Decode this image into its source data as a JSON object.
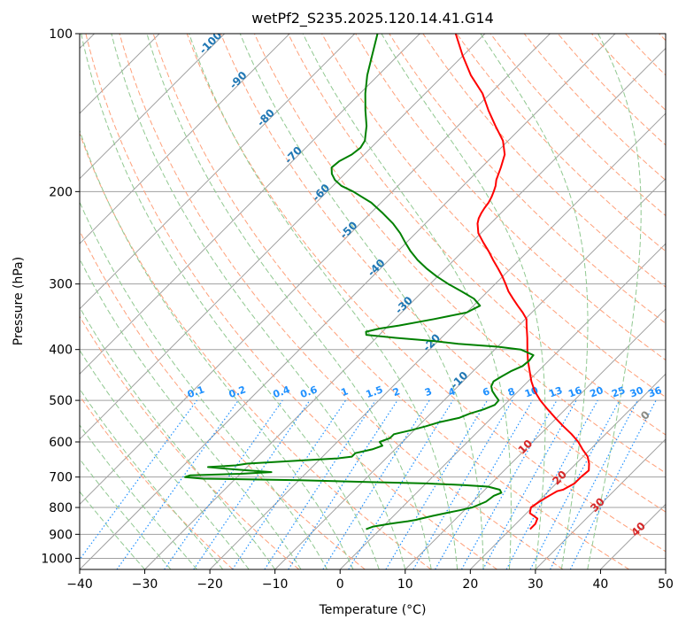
{
  "chart_data": {
    "type": "line",
    "title": "wetPf2_S235.2025.120.14.41.G14",
    "xlabel": "Temperature (°C)",
    "ylabel": "Pressure (hPa)",
    "xlim": [
      -40,
      50
    ],
    "ylim": [
      1050,
      100
    ],
    "y_scale": "log",
    "skew_deg_per_decade_ln": true,
    "x_ticks": [
      "−40",
      "−30",
      "−20",
      "−10",
      "0",
      "10",
      "20",
      "30",
      "40",
      "50"
    ],
    "x_tick_values": [
      -40,
      -30,
      -20,
      -10,
      0,
      10,
      20,
      30,
      40,
      50
    ],
    "y_ticks": [
      "100",
      "200",
      "300",
      "400",
      "500",
      "600",
      "700",
      "800",
      "900",
      "1000"
    ],
    "y_tick_values": [
      100,
      200,
      300,
      400,
      500,
      600,
      700,
      800,
      900,
      1000
    ],
    "grid": true,
    "colors": {
      "temperature": "#ff0000",
      "dewpoint": "#008000",
      "isotherm": "#a0a0a0",
      "dry_adiabat": "#ffa07a",
      "moist_adiabat": "#90c890",
      "mixing_ratio": "#1e90ff",
      "isotherm_label": "#1f77b4",
      "dry_label": "#d62728",
      "moist_label": "#cc9966"
    },
    "series": [
      {
        "key": "temperature",
        "pressure": [
          880,
          860,
          840,
          830,
          820,
          800,
          780,
          760,
          745,
          740,
          720,
          700,
          680,
          660,
          640,
          620,
          600,
          580,
          560,
          540,
          520,
          500,
          480,
          460,
          440,
          420,
          400,
          380,
          360,
          350,
          340,
          330,
          320,
          310,
          300,
          290,
          280,
          270,
          260,
          250,
          240,
          230,
          225,
          220,
          215,
          210,
          205,
          200,
          195,
          190,
          185,
          180,
          170,
          160,
          150,
          140,
          130,
          120,
          110,
          100
        ],
        "value": [
          23.0,
          23.0,
          22.5,
          21.5,
          20.5,
          19.8,
          20.2,
          20.8,
          21.3,
          22.0,
          22.8,
          22.8,
          23.0,
          22.0,
          20.7,
          18.8,
          17.0,
          14.8,
          12.3,
          9.8,
          7.3,
          4.8,
          2.5,
          0.5,
          -1.3,
          -3.2,
          -5.0,
          -6.8,
          -8.8,
          -9.8,
          -11.4,
          -13.2,
          -15.0,
          -16.8,
          -18.4,
          -20.1,
          -22.0,
          -24.0,
          -26.0,
          -28.2,
          -30.4,
          -32.0,
          -32.6,
          -33.0,
          -33.3,
          -33.5,
          -33.9,
          -34.4,
          -35.0,
          -35.8,
          -36.4,
          -37.0,
          -38.4,
          -40.8,
          -44.2,
          -47.7,
          -51.2,
          -55.8,
          -60.1,
          -64.5
        ]
      },
      {
        "key": "dewpoint",
        "pressure": [
          880,
          870,
          865,
          860,
          855,
          850,
          845,
          840,
          830,
          820,
          810,
          800,
          780,
          760,
          750,
          740,
          730,
          725,
          720,
          715,
          710,
          705,
          700,
          695,
          690,
          685,
          680,
          675,
          670,
          665,
          660,
          650,
          645,
          640,
          630,
          620,
          610,
          600,
          590,
          580,
          570,
          560,
          550,
          540,
          530,
          520,
          510,
          500,
          490,
          480,
          470,
          460,
          450,
          440,
          430,
          420,
          410,
          400,
          395,
          390,
          385,
          380,
          375,
          370,
          365,
          360,
          350,
          340,
          330,
          320,
          310,
          300,
          290,
          280,
          270,
          260,
          250,
          240,
          230,
          220,
          210,
          200,
          195,
          190,
          185,
          180,
          175,
          170,
          165,
          160,
          150,
          140,
          130,
          120,
          110,
          100
        ],
        "value": [
          -2.2,
          -1.5,
          -0.5,
          0.5,
          1.7,
          3.0,
          4.0,
          4.6,
          6.0,
          7.6,
          9.3,
          10.8,
          12.0,
          12.3,
          13.0,
          12.3,
          10.0,
          6.0,
          0.0,
          -10.0,
          -20.0,
          -35.0,
          -38.0,
          -37.5,
          -30.0,
          -25.5,
          -29.2,
          -33.0,
          -36.0,
          -32.0,
          -30.5,
          -22.0,
          -17.5,
          -15.5,
          -15.5,
          -13.5,
          -12.5,
          -13.5,
          -12.5,
          -12.5,
          -10.5,
          -8.8,
          -7.3,
          -5.0,
          -4.0,
          -2.5,
          -1.5,
          -1.6,
          -2.8,
          -4.0,
          -4.9,
          -5.3,
          -4.8,
          -4.2,
          -3.2,
          -3.0,
          -3.2,
          -6.0,
          -10.0,
          -16.5,
          -21.0,
          -27.0,
          -32.0,
          -32.5,
          -31.0,
          -28.4,
          -24.0,
          -20.0,
          -19.0,
          -21.0,
          -24.0,
          -27.2,
          -30.2,
          -33.0,
          -35.6,
          -38.0,
          -40.2,
          -42.4,
          -45.0,
          -48.1,
          -51.5,
          -56.0,
          -58.7,
          -60.6,
          -62.0,
          -63.0,
          -62.8,
          -61.9,
          -61.6,
          -62.0,
          -64.0,
          -66.6,
          -69.2,
          -71.7,
          -74.0,
          -76.5
        ]
      }
    ],
    "isotherm_labels": [
      -100,
      -90,
      -80,
      -70,
      -60,
      -50,
      -40,
      -30,
      -20,
      -10
    ],
    "mixing_ratio_labels": [
      "0.1",
      "0.2",
      "0.4",
      "0.6",
      "1",
      "1.5",
      "2",
      "3",
      "4",
      "6",
      "8",
      "10",
      "13",
      "16",
      "20",
      "25",
      "30",
      "36"
    ],
    "mixing_ratio_values": [
      0.1,
      0.2,
      0.4,
      0.6,
      1,
      1.5,
      2,
      3,
      4,
      6,
      8,
      10,
      13,
      16,
      20,
      25,
      30,
      36
    ],
    "dry_adiabat_labels": [
      10,
      20,
      30,
      40
    ],
    "moist_adiabat_labels": [
      0
    ]
  }
}
